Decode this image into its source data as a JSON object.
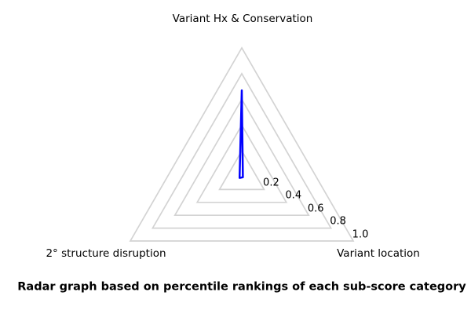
{
  "figure": {
    "background": "#ffffff",
    "caption": "Radar graph based on percentile rankings of each sub-score category"
  },
  "chart_data": {
    "type": "radar",
    "frame": "polygon",
    "categories": [
      "Variant Hx & Conservation",
      "2° structure disruption",
      "Variant location"
    ],
    "axis_angles_deg": [
      90,
      210,
      330
    ],
    "series": [
      {
        "name": "percentile-rankings",
        "color": "#0000ff",
        "values": [
          0.67,
          0.02,
          0.01
        ]
      }
    ],
    "ticks": [
      0.2,
      0.4,
      0.6,
      0.8,
      1.0
    ],
    "tick_labels": [
      "0.2",
      "0.4",
      "0.6",
      "0.8",
      "1.0"
    ],
    "rlim": [
      0,
      1.0
    ],
    "grid": true,
    "grid_color": "#d3d3d3",
    "tick_label_axis_deg": 330,
    "legend": "none",
    "text_color": "#000000"
  }
}
